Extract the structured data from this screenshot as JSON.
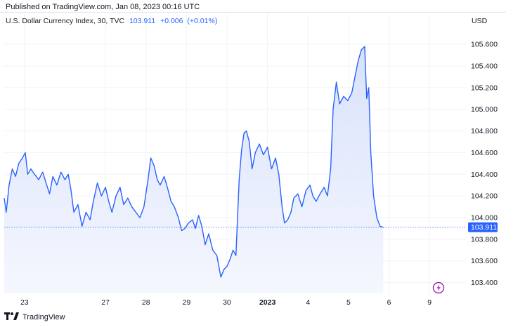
{
  "header": {
    "published": "Published on TradingView.com, Jan 08, 2023 00:16 UTC"
  },
  "legend": {
    "symbol": "U.S. Dollar Currency Index, 30, TVC",
    "last": "103.911",
    "change": "+0.006",
    "change_pct": "(+0.01%)"
  },
  "currency_label": "USD",
  "footer": {
    "brand": "TradingView",
    "logo_icon": "tradingview-logo-icon"
  },
  "colors": {
    "line": "#2962ff",
    "fill_top": "#d9e2fb",
    "fill_bottom": "#f5f7fe",
    "grid": "#f0f3fa",
    "price_tag_bg": "#2962ff",
    "badge": "#9c27b0"
  },
  "event_badge": {
    "icon": "lightning-icon"
  },
  "chart_data": {
    "type": "area",
    "y_axis": {
      "ticks": [
        103.4,
        103.6,
        103.8,
        104.0,
        104.2,
        104.4,
        104.6,
        104.8,
        105.0,
        105.2,
        105.4,
        105.6
      ],
      "tick_labels": [
        "103.400",
        "103.600",
        "103.800",
        "104.000",
        "104.200",
        "104.400",
        "104.600",
        "104.800",
        "105.000",
        "105.200",
        "105.400",
        "105.600"
      ],
      "range": [
        103.3,
        105.75
      ],
      "position": "right"
    },
    "x_axis": {
      "tick_labels": [
        "23",
        "27",
        "28",
        "29",
        "30",
        "2023",
        "4",
        "5",
        "6",
        "9"
      ],
      "tick_positions": [
        0.5,
        2.5,
        3.5,
        4.5,
        5.5,
        6.5,
        7.5,
        8.5,
        9.5,
        10.5
      ],
      "bold_labels": [
        "2023"
      ],
      "range": [
        0,
        11.4
      ]
    },
    "grid": true,
    "last_value": 103.911,
    "last_value_label": "103.911",
    "series": [
      {
        "points": [
          [
            0.0,
            104.18
          ],
          [
            0.05,
            104.05
          ],
          [
            0.12,
            104.3
          ],
          [
            0.2,
            104.45
          ],
          [
            0.28,
            104.38
          ],
          [
            0.36,
            104.5
          ],
          [
            0.45,
            104.55
          ],
          [
            0.52,
            104.6
          ],
          [
            0.58,
            104.4
          ],
          [
            0.66,
            104.45
          ],
          [
            0.75,
            104.4
          ],
          [
            0.85,
            104.35
          ],
          [
            0.95,
            104.42
          ],
          [
            1.05,
            104.3
          ],
          [
            1.12,
            104.22
          ],
          [
            1.2,
            104.38
          ],
          [
            1.3,
            104.3
          ],
          [
            1.4,
            104.42
          ],
          [
            1.5,
            104.35
          ],
          [
            1.58,
            104.4
          ],
          [
            1.65,
            104.25
          ],
          [
            1.72,
            104.05
          ],
          [
            1.82,
            104.12
          ],
          [
            1.92,
            103.92
          ],
          [
            2.02,
            104.05
          ],
          [
            2.12,
            103.98
          ],
          [
            2.2,
            104.15
          ],
          [
            2.3,
            104.32
          ],
          [
            2.4,
            104.2
          ],
          [
            2.5,
            104.28
          ],
          [
            2.58,
            104.15
          ],
          [
            2.66,
            104.05
          ],
          [
            2.76,
            104.2
          ],
          [
            2.86,
            104.28
          ],
          [
            2.95,
            104.12
          ],
          [
            3.05,
            104.18
          ],
          [
            3.15,
            104.1
          ],
          [
            3.25,
            104.05
          ],
          [
            3.35,
            104.0
          ],
          [
            3.45,
            104.1
          ],
          [
            3.55,
            104.35
          ],
          [
            3.62,
            104.55
          ],
          [
            3.7,
            104.48
          ],
          [
            3.78,
            104.35
          ],
          [
            3.85,
            104.3
          ],
          [
            3.95,
            104.38
          ],
          [
            4.05,
            104.25
          ],
          [
            4.12,
            104.15
          ],
          [
            4.2,
            104.1
          ],
          [
            4.3,
            104.0
          ],
          [
            4.38,
            103.88
          ],
          [
            4.46,
            103.9
          ],
          [
            4.55,
            103.95
          ],
          [
            4.65,
            103.98
          ],
          [
            4.72,
            103.9
          ],
          [
            4.8,
            104.02
          ],
          [
            4.88,
            103.92
          ],
          [
            4.96,
            103.75
          ],
          [
            5.05,
            103.85
          ],
          [
            5.15,
            103.7
          ],
          [
            5.25,
            103.65
          ],
          [
            5.35,
            103.45
          ],
          [
            5.42,
            103.52
          ],
          [
            5.5,
            103.55
          ],
          [
            5.58,
            103.62
          ],
          [
            5.65,
            103.7
          ],
          [
            5.72,
            103.65
          ],
          [
            5.8,
            104.35
          ],
          [
            5.86,
            104.62
          ],
          [
            5.92,
            104.78
          ],
          [
            5.98,
            104.8
          ],
          [
            6.05,
            104.7
          ],
          [
            6.12,
            104.45
          ],
          [
            6.2,
            104.6
          ],
          [
            6.3,
            104.68
          ],
          [
            6.4,
            104.58
          ],
          [
            6.5,
            104.65
          ],
          [
            6.6,
            104.45
          ],
          [
            6.7,
            104.55
          ],
          [
            6.78,
            104.4
          ],
          [
            6.86,
            104.1
          ],
          [
            6.92,
            103.95
          ],
          [
            7.0,
            103.98
          ],
          [
            7.08,
            104.05
          ],
          [
            7.15,
            104.18
          ],
          [
            7.25,
            104.22
          ],
          [
            7.35,
            104.1
          ],
          [
            7.45,
            104.25
          ],
          [
            7.55,
            104.3
          ],
          [
            7.62,
            104.2
          ],
          [
            7.7,
            104.15
          ],
          [
            7.8,
            104.22
          ],
          [
            7.9,
            104.28
          ],
          [
            7.98,
            104.2
          ],
          [
            8.06,
            104.45
          ],
          [
            8.12,
            105.0
          ],
          [
            8.2,
            105.25
          ],
          [
            8.28,
            105.05
          ],
          [
            8.38,
            105.12
          ],
          [
            8.48,
            105.08
          ],
          [
            8.58,
            105.15
          ],
          [
            8.66,
            105.3
          ],
          [
            8.74,
            105.45
          ],
          [
            8.82,
            105.55
          ],
          [
            8.9,
            105.58
          ],
          [
            8.95,
            105.1
          ],
          [
            9.0,
            105.2
          ],
          [
            9.05,
            104.6
          ],
          [
            9.12,
            104.2
          ],
          [
            9.2,
            104.0
          ],
          [
            9.28,
            103.92
          ],
          [
            9.36,
            103.91
          ]
        ]
      }
    ]
  }
}
